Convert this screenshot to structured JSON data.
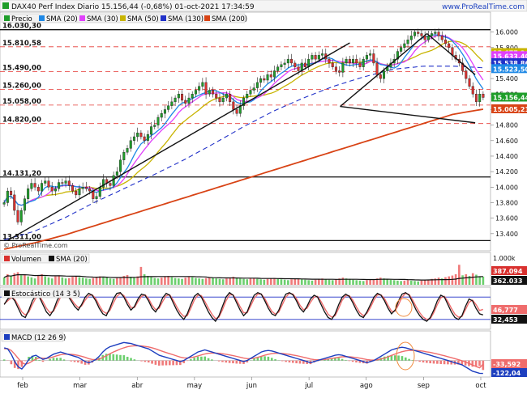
{
  "header": {
    "title": "DAX40 Perf Index Diario 15.156,44 (-0,68%) 01-oct-2021 17:34:59",
    "site": "www.ProRealTime.com",
    "watermark": "© ProRealTime.com"
  },
  "colors": {
    "up": "#1f9e2a",
    "down": "#d9312f",
    "sma20": "#1e88e5",
    "sma30": "#e040fb",
    "sma50": "#c8b400",
    "sma130": "#2030c8",
    "sma200": "#d84315",
    "grid_red": "#e53935",
    "volume_up": "#6ccf6e",
    "volume_down": "#ef7a7a",
    "macd_line": "#1e3fbf",
    "macd_signal": "#ef6c6c"
  },
  "chart_data": [
    {
      "type": "candlestick",
      "panel": "price",
      "legend": [
        {
          "name": "Precio",
          "color": "#1f9e2a"
        },
        {
          "name": "SMA (20)",
          "color": "#1e88e5"
        },
        {
          "name": "SMA (30)",
          "color": "#e040fb"
        },
        {
          "name": "SMA (50)",
          "color": "#c8b400"
        },
        {
          "name": "SMA (130)",
          "color": "#2030c8"
        },
        {
          "name": "SMA (200)",
          "color": "#d84315"
        }
      ],
      "x_labels": [
        "feb",
        "mar",
        "abr",
        "may",
        "jun",
        "jul",
        "ago",
        "sep",
        "oct"
      ],
      "ylim": [
        13200,
        16100
      ],
      "y_ticks": [
        "16.000",
        "15.800",
        "15.600",
        "15.400",
        "15.200",
        "15.000",
        "14.800",
        "14.600",
        "14.400",
        "14.200",
        "14.000",
        "13.800",
        "13.600",
        "13.400"
      ],
      "level_labels": [
        {
          "text": "16.030,30",
          "value": 16030,
          "style": "solid"
        },
        {
          "text": "15.810,58",
          "value": 15810,
          "style": "dashed"
        },
        {
          "text": "15.490,00",
          "value": 15490,
          "style": "dashed"
        },
        {
          "text": "15.260,00",
          "value": 15260,
          "style": "dashed"
        },
        {
          "text": "15.058,00",
          "value": 15058,
          "style": "dashed"
        },
        {
          "text": "14.820,00",
          "value": 14820,
          "style": "dashed"
        },
        {
          "text": "14.131,20",
          "value": 14131,
          "style": "solid"
        },
        {
          "text": "13.311,00",
          "value": 13311,
          "style": "solid"
        }
      ],
      "right_badges": [
        {
          "text": "15.677,34",
          "value": 15730,
          "color": "#c8b400"
        },
        {
          "text": "15.633,40",
          "value": 15690,
          "color": "#e040fb"
        },
        {
          "text": "15.538,86",
          "value": 15600,
          "color": "#2030c8"
        },
        {
          "text": "15.523,50",
          "value": 15523,
          "color": "#1e88e5"
        },
        {
          "text": "15.156,44",
          "value": 15156,
          "color": "#1f9e2a"
        },
        {
          "text": "15.005,21",
          "value": 15005,
          "color": "#d84315"
        }
      ],
      "closes": [
        13800,
        13950,
        13900,
        13700,
        13550,
        13700,
        13850,
        13980,
        14050,
        14000,
        13950,
        14050,
        14080,
        14000,
        13950,
        13980,
        14060,
        14050,
        14080,
        14020,
        13950,
        13900,
        13980,
        14000,
        13980,
        13950,
        13850,
        13880,
        14000,
        14100,
        14050,
        14020,
        14150,
        14200,
        14350,
        14450,
        14500,
        14600,
        14650,
        14700,
        14650,
        14600,
        14680,
        14780,
        14800,
        14900,
        14950,
        15000,
        15050,
        15100,
        15150,
        15200,
        15120,
        15080,
        15150,
        15200,
        15250,
        15300,
        15350,
        15200,
        15250,
        15200,
        15150,
        15100,
        15150,
        15200,
        15100,
        15000,
        14950,
        15050,
        15150,
        15200,
        15250,
        15280,
        15350,
        15400,
        15380,
        15450,
        15420,
        15500,
        15550,
        15580,
        15600,
        15650,
        15600,
        15550,
        15500,
        15600,
        15550,
        15650,
        15700,
        15650,
        15700,
        15720,
        15650,
        15600,
        15550,
        15500,
        15480,
        15600,
        15650,
        15600,
        15650,
        15600,
        15550,
        15650,
        15700,
        15720,
        15600,
        15450,
        15400,
        15500,
        15550,
        15600,
        15650,
        15750,
        15800,
        15850,
        15900,
        15950,
        16000,
        15980,
        15950,
        15900,
        15950,
        15980,
        16000,
        15950,
        15900,
        15850,
        15800,
        15700,
        15650,
        15600,
        15500,
        15400,
        15300,
        15200,
        15100,
        15200,
        15156
      ],
      "sma200": [
        13200,
        13280,
        13380,
        13500,
        13620,
        13740,
        13860,
        13980,
        14100,
        14220,
        14340,
        14460,
        14580,
        14700,
        14820,
        14940,
        15005
      ],
      "sma130": [
        13320,
        13430,
        13600,
        13800,
        13980,
        14160,
        14350,
        14560,
        14780,
        14980,
        15150,
        15300,
        15420,
        15520,
        15560,
        15560,
        15540
      ],
      "trendlines": [
        {
          "from": [
            0.01,
            13310
          ],
          "to": [
            0.72,
            15860
          ],
          "color": "#111"
        },
        {
          "from": [
            0.7,
            15040
          ],
          "to": [
            0.98,
            14830
          ],
          "color": "#111"
        },
        {
          "from": [
            0.7,
            15040
          ],
          "to": [
            0.88,
            15980
          ],
          "color": "#111"
        },
        {
          "from": [
            0.88,
            15980
          ],
          "to": [
            0.98,
            15450
          ],
          "color": "#111"
        }
      ]
    },
    {
      "type": "bar",
      "panel": "volume",
      "legend": [
        {
          "name": "Volumen",
          "color": "#d9312f"
        },
        {
          "name": "SMA (20)",
          "color": "#111111"
        }
      ],
      "y_ticks": [
        "1.000k"
      ],
      "right_badges": [
        {
          "text": "387.094",
          "color": "#d9312f"
        },
        {
          "text": "362.033",
          "color": "#111111"
        }
      ],
      "values": [
        0.35,
        0.5,
        0.4,
        0.55,
        0.6,
        0.45,
        0.5,
        0.4,
        0.35,
        0.3,
        0.45,
        0.5,
        0.4,
        0.35,
        0.3,
        0.4,
        0.45,
        0.35,
        0.3,
        0.32,
        0.38,
        0.42,
        0.36,
        0.34,
        0.3,
        0.28,
        0.32,
        0.36,
        0.4,
        0.38,
        0.34,
        0.3,
        0.28,
        0.32,
        0.36,
        0.42,
        0.46,
        0.38,
        0.34,
        0.4,
        0.85,
        0.5,
        0.42,
        0.36,
        0.32,
        0.3,
        0.34,
        0.38,
        0.42,
        0.36,
        0.32,
        0.3,
        0.28,
        0.34,
        0.38,
        0.36,
        0.32,
        0.3,
        0.28,
        0.32,
        0.36,
        0.34,
        0.3,
        0.28,
        0.26,
        0.3,
        0.34,
        0.38,
        0.32,
        0.3,
        0.28,
        0.26,
        0.3,
        0.32,
        0.28,
        0.26,
        0.24,
        0.28,
        0.3,
        0.32,
        0.28,
        0.26,
        0.24,
        0.22,
        0.26,
        0.28,
        0.3,
        0.26,
        0.24,
        0.22,
        0.2,
        0.24,
        0.28,
        0.3,
        0.26,
        0.24,
        0.22,
        0.26,
        0.3,
        0.34,
        0.3,
        0.28,
        0.24,
        0.22,
        0.2,
        0.18,
        0.22,
        0.24,
        0.26,
        0.3,
        0.34,
        0.3,
        0.28,
        0.24,
        0.22,
        0.2,
        0.18,
        0.2,
        0.22,
        0.2,
        0.18,
        0.16,
        0.2,
        0.22,
        0.24,
        0.28,
        0.3,
        0.34,
        0.3,
        0.36,
        0.4,
        0.44,
        0.5,
        0.95,
        0.45,
        0.5,
        0.42,
        0.55,
        0.48,
        0.4,
        0.387
      ]
    },
    {
      "type": "line",
      "panel": "stochastic",
      "legend": [
        {
          "name": "Estocástico (14 3 5)",
          "color": "#111111"
        }
      ],
      "right_badges": [
        {
          "text": "46,777",
          "color": "#ef6c6c"
        },
        {
          "text": "32,453",
          "color": "#111111"
        }
      ],
      "levels": [
        80,
        20
      ],
      "k": [
        60,
        75,
        82,
        70,
        50,
        30,
        25,
        45,
        70,
        85,
        80,
        60,
        40,
        30,
        45,
        70,
        88,
        92,
        85,
        70,
        55,
        45,
        60,
        80,
        90,
        85,
        70,
        50,
        35,
        30,
        50,
        75,
        90,
        92,
        80,
        60,
        45,
        55,
        75,
        88,
        85,
        70,
        50,
        40,
        55,
        78,
        90,
        85,
        65,
        45,
        30,
        20,
        35,
        60,
        82,
        90,
        80,
        60,
        40,
        25,
        15,
        30,
        55,
        80,
        92,
        85,
        65,
        45,
        30,
        40,
        65,
        85,
        92,
        88,
        70,
        50,
        35,
        30,
        45,
        70,
        88,
        92,
        86,
        70,
        50,
        40,
        55,
        75,
        85,
        80,
        60,
        40,
        25,
        20,
        35,
        60,
        80,
        88,
        82,
        65,
        45,
        30,
        25,
        40,
        60,
        80,
        90,
        85,
        70,
        50,
        35,
        45,
        70,
        88,
        92,
        85,
        65,
        45,
        30,
        20,
        15,
        25,
        45,
        70,
        85,
        80,
        60,
        40,
        25,
        20,
        30,
        55,
        75,
        70,
        50,
        35,
        32
      ],
      "d": [
        62,
        70,
        78,
        74,
        58,
        40,
        32,
        40,
        60,
        78,
        82,
        68,
        50,
        38,
        42,
        60,
        80,
        88,
        86,
        75,
        62,
        52,
        56,
        72,
        84,
        86,
        76,
        58,
        42,
        36,
        44,
        64,
        82,
        90,
        84,
        68,
        52,
        52,
        68,
        82,
        86,
        76,
        58,
        46,
        50,
        68,
        84,
        86,
        72,
        54,
        38,
        28,
        30,
        50,
        72,
        85,
        84,
        68,
        50,
        34,
        22,
        26,
        46,
        70,
        86,
        86,
        72,
        54,
        38,
        38,
        56,
        76,
        88,
        88,
        76,
        58,
        42,
        34,
        40,
        60,
        80,
        90,
        88,
        76,
        58,
        46,
        50,
        66,
        80,
        82,
        68,
        50,
        34,
        26,
        30,
        50,
        72,
        84,
        84,
        72,
        54,
        38,
        30,
        36,
        52,
        72,
        86,
        86,
        76,
        58,
        42,
        42,
        60,
        80,
        90,
        87,
        72,
        54,
        38,
        26,
        20,
        22,
        38,
        60,
        78,
        82,
        68,
        50,
        34,
        26,
        28,
        46,
        66,
        72,
        60,
        44,
        47
      ]
    },
    {
      "type": "macd",
      "panel": "macd",
      "legend": [
        {
          "name": "MACD (12 26 9)",
          "color": "#1e3fbf"
        }
      ],
      "right_badges": [
        {
          "text": "-33,592",
          "color": "#ef6c6c"
        },
        {
          "text": "-122,04",
          "color": "#1e3fbf"
        }
      ],
      "macd": [
        120,
        110,
        60,
        -10,
        -60,
        -80,
        -40,
        10,
        40,
        50,
        30,
        10,
        20,
        40,
        60,
        70,
        80,
        70,
        60,
        50,
        40,
        30,
        10,
        -10,
        -20,
        -10,
        10,
        40,
        80,
        110,
        130,
        140,
        150,
        160,
        170,
        165,
        160,
        150,
        140,
        130,
        120,
        110,
        90,
        70,
        50,
        40,
        30,
        20,
        10,
        0,
        -10,
        0,
        20,
        40,
        60,
        80,
        90,
        100,
        90,
        80,
        70,
        60,
        50,
        40,
        30,
        20,
        10,
        0,
        -10,
        0,
        20,
        40,
        60,
        80,
        90,
        95,
        90,
        80,
        70,
        60,
        50,
        40,
        30,
        20,
        10,
        0,
        -10,
        -20,
        -10,
        0,
        10,
        20,
        30,
        40,
        50,
        55,
        50,
        40,
        30,
        20,
        10,
        0,
        -10,
        -20,
        -10,
        0,
        20,
        40,
        60,
        80,
        100,
        110,
        120,
        125,
        120,
        110,
        100,
        90,
        80,
        70,
        60,
        50,
        40,
        30,
        20,
        10,
        0,
        -10,
        -20,
        -30,
        -40,
        -60,
        -80,
        -100,
        -110,
        -120,
        -122
      ],
      "signal": [
        110,
        112,
        95,
        60,
        20,
        -20,
        -35,
        -25,
        -5,
        15,
        25,
        22,
        20,
        25,
        35,
        45,
        55,
        60,
        60,
        58,
        54,
        48,
        40,
        30,
        18,
        10,
        8,
        14,
        28,
        46,
        64,
        80,
        94,
        108,
        120,
        130,
        136,
        139,
        139,
        137,
        133,
        128,
        120,
        110,
        98,
        86,
        75,
        64,
        54,
        43,
        32,
        25,
        24,
        27,
        34,
        43,
        53,
        62,
        68,
        70,
        70,
        68,
        64,
        59,
        53,
        46,
        39,
        31,
        23,
        18,
        18,
        22,
        30,
        40,
        50,
        59,
        65,
        68,
        68,
        66,
        63,
        58,
        52,
        46,
        39,
        31,
        23,
        14,
        9,
        7,
        8,
        10,
        14,
        19,
        25,
        31,
        35,
        36,
        35,
        32,
        28,
        22,
        16,
        9,
        5,
        4,
        7,
        14,
        23,
        35,
        48,
        61,
        73,
        83,
        91,
        95,
        96,
        95,
        92,
        88,
        82,
        76,
        69,
        61,
        53,
        45,
        36,
        27,
        18,
        8,
        -2,
        -14,
        -27,
        -42,
        -56,
        -69,
        -33
      ]
    }
  ]
}
